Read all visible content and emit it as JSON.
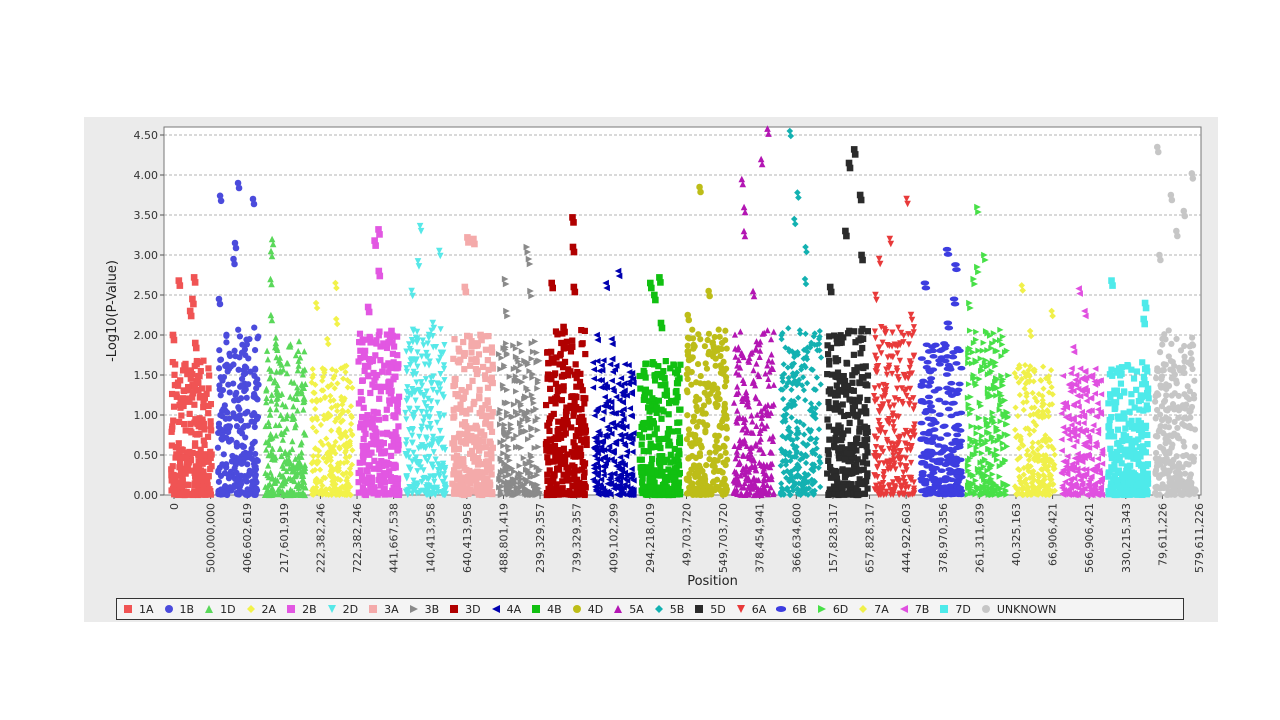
{
  "chart_data": {
    "type": "scatter",
    "title": "",
    "xlabel": "Position",
    "ylabel": "-Log10(P-Value)",
    "ylim": [
      0,
      4.6
    ],
    "yticks": [
      "0.00",
      "0.50",
      "1.00",
      "1.50",
      "2.00",
      "2.50",
      "3.00",
      "3.50",
      "4.00",
      "4.50"
    ],
    "grid": true,
    "legend_position": "bottom",
    "xtick_labels": [
      "0",
      "500,000,000",
      "406,602,619",
      "217,601,919",
      "222,382,246",
      "722,382,246",
      "441,667,538",
      "140,413,958",
      "640,413,958",
      "488,801,419",
      "239,329,357",
      "739,329,357",
      "409,102,299",
      "294,218,019",
      "49,703,720",
      "549,703,720",
      "378,454,941",
      "366,634,600",
      "157,828,317",
      "657,828,317",
      "444,922,603",
      "378,970,356",
      "261,311,639",
      "40,325,163",
      "66,906,421",
      "566,906,421",
      "330,215,343",
      "79,611,226",
      "579,611,226"
    ],
    "series": [
      {
        "name": "1A",
        "color": "#f05454",
        "shape": "square",
        "max": 2.72,
        "peaks": [
          2.72,
          2.68,
          1.9,
          2.3,
          2.45,
          2.0
        ]
      },
      {
        "name": "1B",
        "color": "#4b4bdc",
        "shape": "circle",
        "max": 3.9,
        "peaks": [
          3.74,
          3.7,
          3.15,
          2.95,
          2.45,
          3.9
        ]
      },
      {
        "name": "1D",
        "color": "#5ad85a",
        "shape": "triangle-up",
        "max": 3.2,
        "peaks": [
          3.2,
          3.05,
          2.7,
          2.25,
          1.9
        ]
      },
      {
        "name": "2A",
        "color": "#f2f24a",
        "shape": "diamond",
        "max": 2.65,
        "peaks": [
          2.65,
          2.4,
          2.2,
          1.95
        ]
      },
      {
        "name": "2B",
        "color": "#e257e2",
        "shape": "square",
        "max": 3.32,
        "peaks": [
          3.32,
          3.18,
          2.8,
          2.35,
          2.05
        ]
      },
      {
        "name": "2D",
        "color": "#56e8e8",
        "shape": "triangle-down",
        "max": 3.36,
        "peaks": [
          3.36,
          3.05,
          2.92,
          2.55,
          2.15
        ]
      },
      {
        "name": "3A",
        "color": "#f4aaaa",
        "shape": "square",
        "max": 3.22,
        "peaks": [
          3.22,
          3.2,
          2.6,
          2.0
        ]
      },
      {
        "name": "3B",
        "color": "#8a8a8a",
        "shape": "triangle-right",
        "max": 3.1,
        "peaks": [
          3.1,
          2.95,
          2.7,
          2.55,
          2.3
        ]
      },
      {
        "name": "3D",
        "color": "#b00000",
        "shape": "square",
        "max": 3.47,
        "peaks": [
          3.47,
          3.1,
          2.65,
          2.6,
          2.1
        ]
      },
      {
        "name": "4A",
        "color": "#0000b0",
        "shape": "triangle-left",
        "max": 2.8,
        "peaks": [
          2.8,
          2.65,
          2.0,
          1.95
        ]
      },
      {
        "name": "4B",
        "color": "#11c011",
        "shape": "square",
        "max": 2.72,
        "peaks": [
          2.72,
          2.65,
          2.5,
          2.15
        ]
      },
      {
        "name": "4D",
        "color": "#bdbd18",
        "shape": "circle",
        "max": 3.85,
        "peaks": [
          3.85,
          2.55,
          2.25,
          1.75
        ]
      },
      {
        "name": "5A",
        "color": "#b316b3",
        "shape": "triangle-up",
        "max": 4.58,
        "peaks": [
          4.58,
          4.2,
          3.95,
          3.6,
          3.3,
          2.55
        ]
      },
      {
        "name": "5B",
        "color": "#13b1b1",
        "shape": "diamond",
        "max": 4.55,
        "peaks": [
          4.55,
          3.78,
          3.45,
          3.1,
          2.7
        ]
      },
      {
        "name": "5D",
        "color": "#2b2b2b",
        "shape": "square",
        "max": 4.32,
        "peaks": [
          4.32,
          4.15,
          3.75,
          3.3,
          3.0,
          2.6
        ]
      },
      {
        "name": "6A",
        "color": "#e83a3a",
        "shape": "triangle-down",
        "max": 3.7,
        "peaks": [
          3.7,
          3.2,
          2.95,
          2.5,
          2.25
        ]
      },
      {
        "name": "6B",
        "color": "#3d3de0",
        "shape": "ellipse",
        "max": 3.07,
        "peaks": [
          3.07,
          2.88,
          2.65,
          2.45,
          2.15
        ]
      },
      {
        "name": "6D",
        "color": "#48e048",
        "shape": "triangle-right",
        "max": 3.6,
        "peaks": [
          3.6,
          3.0,
          2.85,
          2.7,
          2.4
        ]
      },
      {
        "name": "7A",
        "color": "#f0f04a",
        "shape": "diamond",
        "max": 2.62,
        "peaks": [
          2.62,
          2.3,
          2.05
        ]
      },
      {
        "name": "7B",
        "color": "#e050e0",
        "shape": "triangle-left",
        "max": 2.58,
        "peaks": [
          2.58,
          2.3,
          1.85
        ]
      },
      {
        "name": "7D",
        "color": "#4eeaea",
        "shape": "square",
        "max": 2.68,
        "peaks": [
          2.68,
          2.4,
          2.2
        ]
      },
      {
        "name": "UNKNOWN",
        "color": "#c6c6c6",
        "shape": "circle",
        "max": 4.35,
        "peaks": [
          4.35,
          4.02,
          3.75,
          3.55,
          3.3,
          3.0
        ]
      }
    ]
  }
}
